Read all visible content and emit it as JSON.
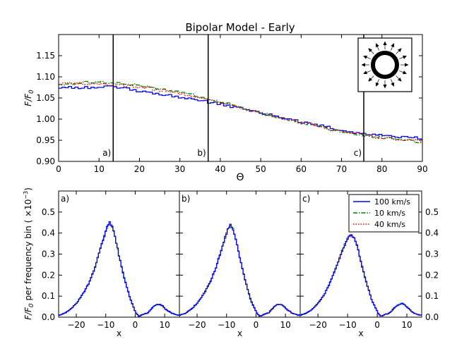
{
  "chart_data": [
    {
      "type": "line",
      "title": "Bipolar Model - Early",
      "xlabel": "Θ",
      "ylabel": "F/F",
      "ylabel_sub": "0",
      "xlim": [
        0,
        90
      ],
      "ylim": [
        0.9,
        1.2
      ],
      "xticks": [
        "0",
        "10",
        "20",
        "30",
        "40",
        "50",
        "60",
        "70",
        "80",
        "90"
      ],
      "yticks": [
        "0.90",
        "0.95",
        "1.00",
        "1.05",
        "1.10",
        "1.15"
      ],
      "vlines": [
        {
          "x": 13.5,
          "label": "a)"
        },
        {
          "x": 37.0,
          "label": "b)"
        },
        {
          "x": 75.5,
          "label": "c)"
        }
      ],
      "series": [
        {
          "name": "100 km/s",
          "color": "#0000ff",
          "style": "step",
          "x": [
            0,
            10,
            13,
            20,
            30,
            40,
            50,
            60,
            70,
            75,
            80,
            90
          ],
          "y": [
            1.075,
            1.075,
            1.077,
            1.066,
            1.052,
            1.035,
            1.014,
            0.993,
            0.973,
            0.965,
            0.96,
            0.955
          ]
        },
        {
          "name": "10 km/s",
          "color": "#008000",
          "style": "dashdot",
          "x": [
            0,
            5,
            10,
            20,
            30,
            40,
            50,
            60,
            70,
            75,
            80,
            90
          ],
          "y": [
            1.082,
            1.086,
            1.087,
            1.08,
            1.063,
            1.04,
            1.014,
            0.99,
            0.97,
            0.962,
            0.955,
            0.945
          ]
        },
        {
          "name": "40 km/s",
          "color": "#ff0000",
          "style": "dotted",
          "x": [
            0,
            5,
            10,
            20,
            30,
            40,
            50,
            60,
            70,
            75,
            80,
            90
          ],
          "y": [
            1.085,
            1.085,
            1.084,
            1.076,
            1.06,
            1.038,
            1.013,
            0.991,
            0.971,
            0.963,
            0.956,
            0.947
          ]
        }
      ]
    },
    {
      "type": "line",
      "panels": [
        "a)",
        "b)",
        "c)"
      ],
      "xlabel": "x",
      "ylabel": "F/F",
      "ylabel_sub": "0",
      "ylabel_rest": " per frequency bin ( ×10",
      "ylabel_exp": "−3",
      "ylabel_close": ")",
      "xlim": [
        -26,
        15
      ],
      "ylim": [
        0,
        0.6
      ],
      "xticks": [
        "−20",
        "−10",
        "0",
        "10"
      ],
      "yticks": [
        "0.0",
        "0.1",
        "0.2",
        "0.3",
        "0.4",
        "0.5"
      ],
      "legend": [
        "100 km/s",
        "10 km/s",
        "40 km/s"
      ],
      "profile_x": [
        -26,
        -24,
        -22,
        -20,
        -18,
        -16,
        -14,
        -12,
        -10,
        -9,
        -8,
        -7,
        -6,
        -4,
        -2,
        0,
        1,
        2,
        4,
        6,
        7,
        8,
        9,
        10,
        12,
        14,
        15
      ],
      "profiles": [
        [
          0.01,
          0.02,
          0.04,
          0.07,
          0.11,
          0.16,
          0.23,
          0.33,
          0.42,
          0.45,
          0.43,
          0.38,
          0.31,
          0.19,
          0.09,
          0.02,
          0.005,
          0.01,
          0.02,
          0.05,
          0.06,
          0.06,
          0.055,
          0.04,
          0.02,
          0.01,
          0.01
        ],
        [
          0.01,
          0.02,
          0.04,
          0.07,
          0.11,
          0.16,
          0.23,
          0.32,
          0.41,
          0.44,
          0.42,
          0.37,
          0.3,
          0.18,
          0.08,
          0.02,
          0.005,
          0.01,
          0.02,
          0.05,
          0.06,
          0.06,
          0.055,
          0.04,
          0.02,
          0.01,
          0.01
        ],
        [
          0.01,
          0.02,
          0.04,
          0.07,
          0.11,
          0.17,
          0.24,
          0.32,
          0.38,
          0.39,
          0.38,
          0.34,
          0.28,
          0.17,
          0.08,
          0.02,
          0.005,
          0.01,
          0.02,
          0.05,
          0.06,
          0.065,
          0.06,
          0.045,
          0.02,
          0.01,
          0.01
        ]
      ]
    }
  ],
  "series_colors": {
    "s100": "#0000ff",
    "s10": "#008000",
    "s40": "#ff0000"
  }
}
